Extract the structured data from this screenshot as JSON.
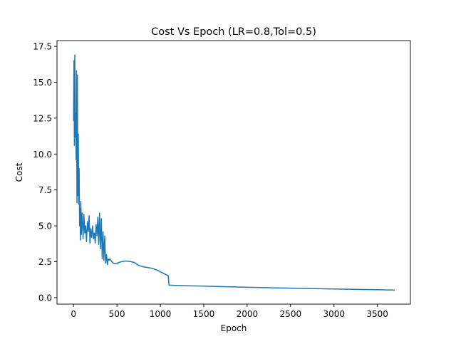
{
  "chart_data": {
    "type": "line",
    "title": "Cost Vs Epoch (LR=0.8,Tol=0.5)",
    "xlabel": "Epoch",
    "ylabel": "Cost",
    "xlim": [
      -190,
      3880
    ],
    "ylim": [
      -0.45,
      17.9
    ],
    "xticks": [
      0,
      500,
      1000,
      1500,
      2000,
      2500,
      3000,
      3500
    ],
    "yticks": [
      0.0,
      2.5,
      5.0,
      7.5,
      10.0,
      12.5,
      15.0,
      17.5
    ],
    "xtick_labels": [
      "0",
      "500",
      "1000",
      "1500",
      "2000",
      "2500",
      "3000",
      "3500"
    ],
    "ytick_labels": [
      "0.0",
      "2.5",
      "5.0",
      "7.5",
      "10.0",
      "12.5",
      "15.0",
      "17.5"
    ],
    "grid": false,
    "series": [
      {
        "color": "#1f77b4",
        "x": [
          0,
          5,
          10,
          15,
          20,
          25,
          30,
          35,
          40,
          45,
          50,
          55,
          60,
          65,
          70,
          75,
          80,
          85,
          90,
          100,
          110,
          120,
          130,
          140,
          150,
          160,
          170,
          180,
          190,
          200,
          210,
          220,
          230,
          240,
          250,
          260,
          270,
          280,
          290,
          300,
          310,
          320,
          330,
          340,
          350,
          360,
          370,
          380,
          390,
          400,
          410,
          420,
          440,
          460,
          480,
          500,
          550,
          600,
          650,
          700,
          750,
          800,
          850,
          900,
          950,
          1000,
          1050,
          1090,
          1100,
          1150,
          1300,
          1500,
          2000,
          2500,
          3000,
          3500,
          3700
        ],
        "y": [
          12.3,
          16.5,
          10.6,
          16.9,
          11.2,
          12.8,
          9.6,
          15.8,
          6.6,
          15.5,
          7.1,
          11.4,
          6.5,
          9.0,
          5.0,
          6.2,
          4.0,
          6.7,
          4.4,
          5.9,
          4.1,
          5.8,
          4.5,
          5.0,
          3.9,
          5.3,
          4.6,
          5.7,
          3.8,
          4.8,
          4.2,
          5.0,
          4.1,
          4.5,
          3.8,
          5.1,
          4.3,
          5.6,
          3.7,
          5.9,
          3.4,
          5.5,
          2.7,
          4.6,
          2.6,
          4.3,
          2.4,
          3.0,
          2.3,
          2.7,
          2.6,
          2.7,
          2.5,
          2.4,
          2.35,
          2.4,
          2.5,
          2.55,
          2.52,
          2.45,
          2.25,
          2.15,
          2.1,
          2.05,
          1.95,
          1.8,
          1.65,
          1.55,
          0.87,
          0.86,
          0.83,
          0.8,
          0.72,
          0.66,
          0.6,
          0.55,
          0.52
        ]
      }
    ]
  }
}
